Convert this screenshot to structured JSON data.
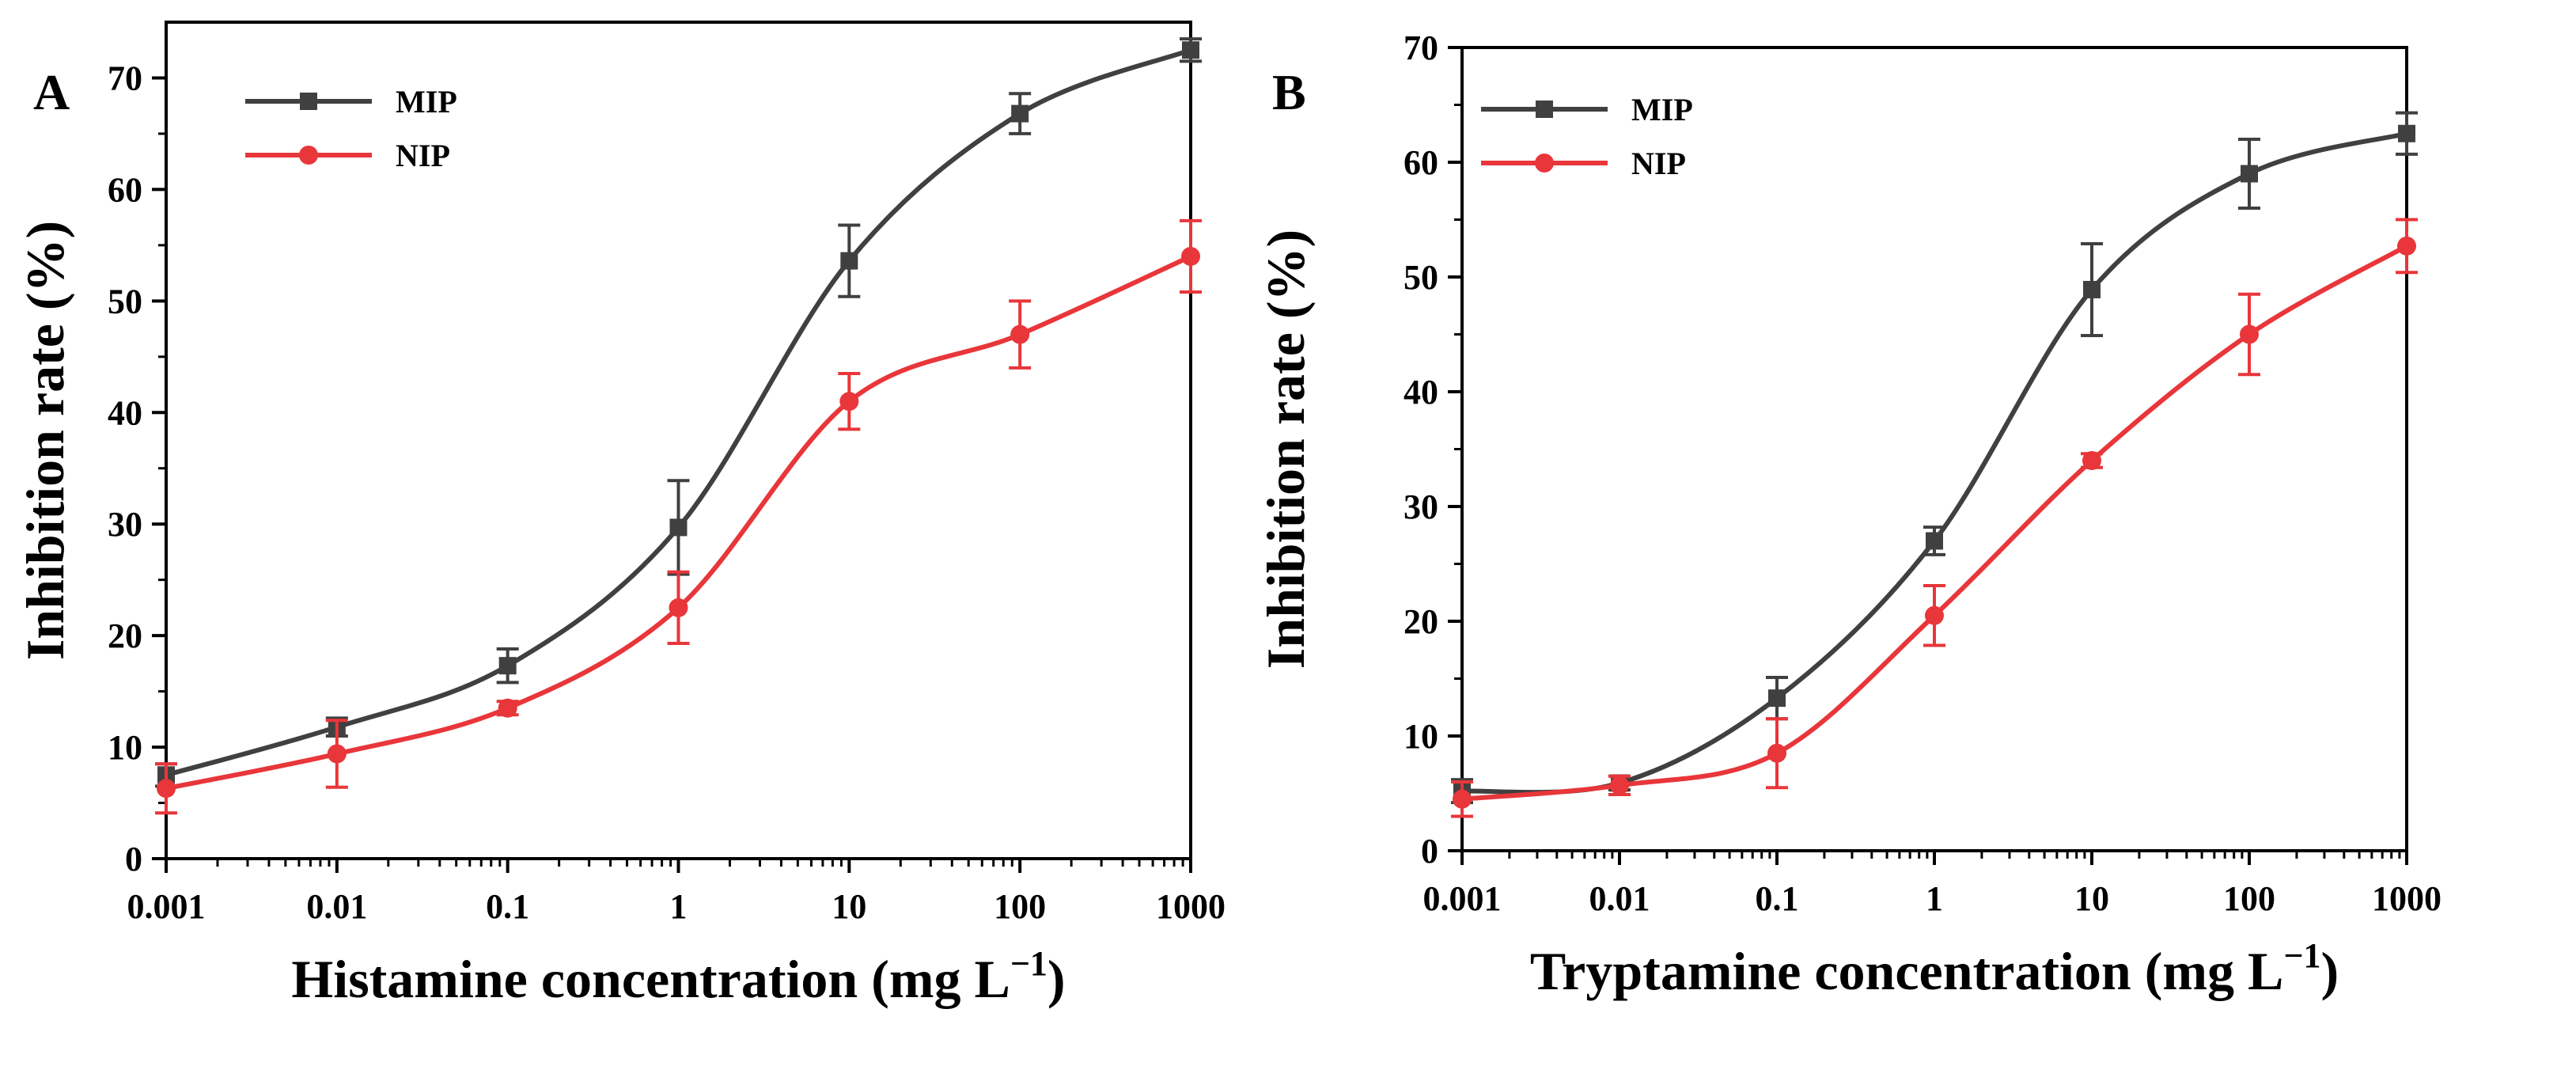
{
  "chart_data": [
    {
      "type": "line",
      "panel_label": "A",
      "xscale": "log",
      "xlim": [
        0.001,
        1000
      ],
      "ylim": [
        0,
        75
      ],
      "x_ticks": [
        0.001,
        0.01,
        0.1,
        1,
        10,
        100,
        1000
      ],
      "x_tick_labels": [
        "0.001",
        "0.01",
        "0.1",
        "1",
        "10",
        "100",
        "1000"
      ],
      "y_ticks": [
        0,
        10,
        20,
        30,
        40,
        50,
        60,
        70
      ],
      "y_tick_labels": [
        "0",
        "10",
        "20",
        "30",
        "40",
        "50",
        "60",
        "70"
      ],
      "xlabel": "Histamine concentration (mg L",
      "xlabel_superscript": "−1",
      "xlabel_suffix": ")",
      "ylabel": "Inhibition rate (%)",
      "legend_position": "top-left",
      "x": [
        0.001,
        0.01,
        0.1,
        1,
        10,
        100,
        1000
      ],
      "series": [
        {
          "name": "MIP",
          "color": "#404040",
          "marker": "square",
          "values": [
            7.5,
            11.8,
            17.3,
            29.7,
            53.6,
            66.8,
            72.5
          ],
          "errors": [
            1.0,
            0.8,
            1.5,
            4.2,
            3.2,
            1.8,
            1.0
          ]
        },
        {
          "name": "NIP",
          "color": "#e8363a",
          "marker": "circle",
          "values": [
            6.3,
            9.4,
            13.5,
            22.5,
            41.0,
            47.0,
            54.0
          ],
          "errors": [
            2.2,
            3.0,
            0.6,
            3.2,
            2.5,
            3.0,
            3.2
          ]
        }
      ]
    },
    {
      "type": "line",
      "panel_label": "B",
      "xscale": "log",
      "xlim": [
        0.001,
        1000
      ],
      "ylim": [
        0,
        70
      ],
      "x_ticks": [
        0.001,
        0.01,
        0.1,
        1,
        10,
        100,
        1000
      ],
      "x_tick_labels": [
        "0.001",
        "0.01",
        "0.1",
        "1",
        "10",
        "100",
        "1000"
      ],
      "y_ticks": [
        0,
        10,
        20,
        30,
        40,
        50,
        60,
        70
      ],
      "y_tick_labels": [
        "0",
        "10",
        "20",
        "30",
        "40",
        "50",
        "60",
        "70"
      ],
      "xlabel": "Tryptamine concentration (mg L",
      "xlabel_superscript": "−1",
      "xlabel_suffix": ")",
      "ylabel": "Inhibition rate (%)",
      "legend_position": "top-left",
      "x": [
        0.001,
        0.01,
        0.1,
        1,
        10,
        100,
        1000
      ],
      "series": [
        {
          "name": "MIP",
          "color": "#404040",
          "marker": "square",
          "values": [
            5.2,
            5.9,
            13.3,
            27.0,
            48.9,
            59.0,
            62.5
          ],
          "errors": [
            1.0,
            0.6,
            1.8,
            1.2,
            4.0,
            3.0,
            1.8
          ]
        },
        {
          "name": "NIP",
          "color": "#e8363a",
          "marker": "circle",
          "values": [
            4.5,
            5.7,
            8.5,
            20.5,
            34.0,
            45.0,
            52.7
          ],
          "errors": [
            1.5,
            0.8,
            3.0,
            2.6,
            0.6,
            3.5,
            2.3
          ]
        }
      ]
    }
  ]
}
